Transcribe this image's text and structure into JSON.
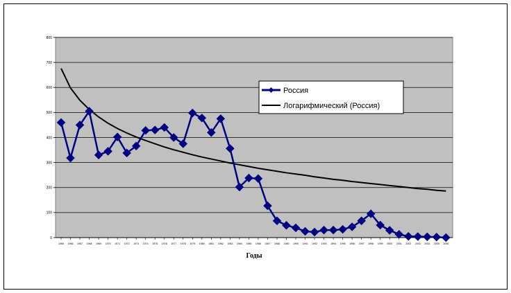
{
  "chart_data": {
    "type": "line",
    "title": "",
    "xlabel": "Годы",
    "ylabel": "",
    "ylim": [
      0,
      800
    ],
    "yticks": [
      "0",
      "100",
      "200",
      "300",
      "400",
      "500",
      "600",
      "700",
      "800"
    ],
    "x": [
      "1965",
      "1966",
      "1967",
      "1968",
      "1969",
      "1970",
      "1971",
      "1972",
      "1973",
      "1974",
      "1975",
      "1976",
      "1977",
      "1978",
      "1979",
      "1980",
      "1981",
      "1982",
      "1983",
      "1984",
      "1985",
      "1986",
      "1987",
      "1988",
      "1989",
      "1990",
      "1991",
      "1992",
      "1993",
      "1994",
      "1995",
      "1996",
      "1997",
      "1998",
      "1999",
      "2000",
      "2001",
      "2002",
      "2003",
      "2004",
      "2005",
      "2006"
    ],
    "grid": true,
    "legend_position": "right",
    "colors": {
      "series": "#000080",
      "trend": "#000000",
      "plot_bg": "#c0c0c0"
    },
    "series": [
      {
        "name": "Россия",
        "values": [
          460,
          318,
          450,
          505,
          330,
          345,
          402,
          338,
          366,
          428,
          430,
          440,
          400,
          375,
          498,
          478,
          420,
          475,
          356,
          202,
          238,
          236,
          127,
          67,
          49,
          39,
          25,
          22,
          30,
          30,
          33,
          43,
          67,
          95,
          50,
          29,
          13,
          5,
          4,
          3,
          2,
          0
        ]
      },
      {
        "name": "Логарифмический (Россия)",
        "trend": "logarithmic",
        "values": [
          676,
          598,
          549,
          512,
          482,
          457,
          436,
          418,
          402,
          388,
          375,
          362,
          351,
          341,
          331,
          322,
          314,
          306,
          298,
          291,
          284,
          277,
          271,
          265,
          259,
          254,
          249,
          243,
          238,
          233,
          229,
          224,
          220,
          216,
          212,
          208,
          204,
          200,
          196,
          193,
          189,
          186
        ]
      }
    ]
  }
}
